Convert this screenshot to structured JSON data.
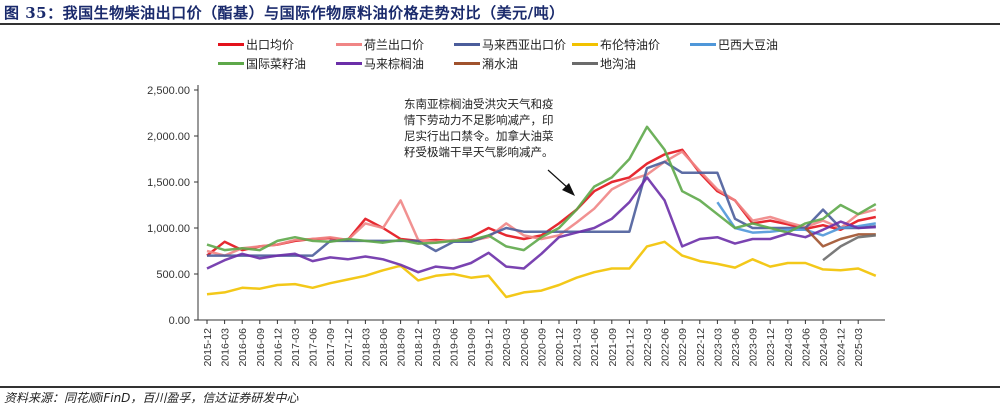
{
  "title": "图 35：我国生物柴油出口价（酯基）与国际作物原料油价格走势对比（美元/吨）",
  "source": "资料来源：同花顺iFinD，百川盈孚，信达证券研发中心",
  "chart_data": {
    "type": "line",
    "title": "",
    "xlabel": "",
    "ylabel": "",
    "ylim": [
      0,
      2500
    ],
    "yticks": [
      "0.00",
      "500.00",
      "1,000.00",
      "1,500.00",
      "2,000.00",
      "2,500.00"
    ],
    "xticks": [
      "2015-12",
      "2016-03",
      "2016-06",
      "2016-09",
      "2016-12",
      "2017-03",
      "2017-06",
      "2017-09",
      "2017-12",
      "2018-03",
      "2018-06",
      "2018-09",
      "2018-12",
      "2019-03",
      "2019-06",
      "2019-09",
      "2019-12",
      "2020-03",
      "2020-06",
      "2020-09",
      "2020-12",
      "2021-03",
      "2021-06",
      "2021-09",
      "2021-12",
      "2022-03",
      "2022-06",
      "2022-09",
      "2022-12",
      "2023-03",
      "2023-06",
      "2023-09",
      "2023-12",
      "2024-03",
      "2024-06",
      "2024-09",
      "2024-12",
      "2025-03"
    ],
    "x": [
      "2015-12",
      "2016-03",
      "2016-06",
      "2016-09",
      "2016-12",
      "2017-03",
      "2017-06",
      "2017-09",
      "2017-12",
      "2018-03",
      "2018-06",
      "2018-09",
      "2018-12",
      "2019-03",
      "2019-06",
      "2019-09",
      "2019-12",
      "2020-03",
      "2020-06",
      "2020-09",
      "2020-12",
      "2021-03",
      "2021-06",
      "2021-09",
      "2021-12",
      "2022-03",
      "2022-06",
      "2022-09",
      "2022-12",
      "2023-03",
      "2023-06",
      "2023-09",
      "2023-12",
      "2024-03",
      "2024-06",
      "2024-09",
      "2024-12",
      "2025-03",
      "2025-06"
    ],
    "grid": false,
    "legend_placement": "top",
    "annotation": "东南亚棕榈油受洪灾天气和疫情下劳动力不足影响减产，印尼实行出口禁令。加拿大油菜籽受极端干旱天气影响减产。",
    "series": [
      {
        "name": "出口均价",
        "color": "#e3121b",
        "values": [
          700,
          850,
          760,
          800,
          820,
          860,
          880,
          890,
          870,
          1100,
          1000,
          880,
          860,
          870,
          860,
          900,
          1000,
          920,
          880,
          920,
          1050,
          1200,
          1400,
          1500,
          1550,
          1700,
          1800,
          1850,
          1600,
          1400,
          1300,
          1050,
          1080,
          1040,
          990,
          1030,
          980,
          1080,
          1120
        ]
      },
      {
        "name": "荷兰出口价",
        "color": "#f08585",
        "values": [
          750,
          700,
          780,
          800,
          820,
          870,
          880,
          900,
          870,
          1050,
          1000,
          1300,
          870,
          850,
          870,
          860,
          900,
          1050,
          920,
          880,
          920,
          1060,
          1210,
          1420,
          1520,
          1580,
          1720,
          1830,
          1620,
          1420,
          1300,
          1080,
          1120,
          1060,
          1010,
          1080,
          1000,
          1150,
          1200
        ]
      },
      {
        "name": "马来西亚出口价",
        "color": "#4b5d9b",
        "values": [
          700,
          700,
          700,
          700,
          700,
          700,
          700,
          860,
          860,
          860,
          860,
          860,
          860,
          750,
          850,
          850,
          920,
          1000,
          960,
          960,
          960,
          960,
          960,
          960,
          960,
          1650,
          1720,
          1600,
          1600,
          1600,
          1100,
          1000,
          1000,
          1000,
          1000,
          1200,
          1000,
          1000,
          1020
        ]
      },
      {
        "name": "布伦特油价",
        "color": "#f2c200",
        "values": [
          280,
          300,
          350,
          340,
          380,
          390,
          350,
          400,
          440,
          480,
          540,
          590,
          430,
          480,
          500,
          460,
          480,
          250,
          300,
          320,
          380,
          460,
          520,
          560,
          560,
          800,
          850,
          700,
          640,
          610,
          570,
          660,
          580,
          620,
          620,
          550,
          540,
          560,
          480
        ]
      },
      {
        "name": "巴西大豆油",
        "color": "#4f97d9",
        "values": [
          null,
          null,
          null,
          null,
          null,
          null,
          null,
          null,
          null,
          null,
          null,
          null,
          null,
          null,
          null,
          null,
          null,
          null,
          null,
          null,
          null,
          null,
          null,
          null,
          null,
          null,
          null,
          null,
          null,
          1280,
          1000,
          950,
          960,
          980,
          980,
          920,
          1000,
          1020,
          1050
        ]
      },
      {
        "name": "国际菜籽油",
        "color": "#5ea84a",
        "values": [
          820,
          760,
          780,
          760,
          860,
          900,
          860,
          850,
          880,
          860,
          840,
          870,
          830,
          840,
          860,
          870,
          920,
          800,
          760,
          900,
          1000,
          1200,
          1450,
          1550,
          1750,
          2100,
          1850,
          1400,
          1300,
          1150,
          1000,
          1050,
          1000,
          950,
          1050,
          1100,
          1250,
          1150,
          1260
        ]
      },
      {
        "name": "马来棕榈油",
        "color": "#6b2fa8",
        "values": [
          560,
          650,
          720,
          670,
          700,
          720,
          640,
          680,
          660,
          690,
          660,
          600,
          520,
          580,
          560,
          620,
          730,
          580,
          560,
          720,
          900,
          950,
          1000,
          1100,
          1280,
          1550,
          1300,
          800,
          880,
          900,
          830,
          880,
          880,
          940,
          900,
          980,
          1070,
          1000,
          1010
        ]
      },
      {
        "name": "潲水油",
        "color": "#a0522d",
        "values": [
          null,
          null,
          null,
          null,
          null,
          null,
          null,
          null,
          null,
          null,
          null,
          null,
          null,
          null,
          null,
          null,
          null,
          null,
          null,
          null,
          null,
          null,
          null,
          null,
          null,
          null,
          null,
          null,
          null,
          null,
          null,
          null,
          null,
          null,
          1000,
          800,
          880,
          930,
          930
        ]
      },
      {
        "name": "地沟油",
        "color": "#6b6b6b",
        "values": [
          null,
          null,
          null,
          null,
          null,
          null,
          null,
          null,
          null,
          null,
          null,
          null,
          null,
          null,
          null,
          null,
          null,
          null,
          null,
          null,
          null,
          null,
          null,
          null,
          null,
          null,
          null,
          null,
          null,
          null,
          null,
          null,
          null,
          null,
          null,
          650,
          800,
          900,
          920
        ]
      }
    ]
  }
}
